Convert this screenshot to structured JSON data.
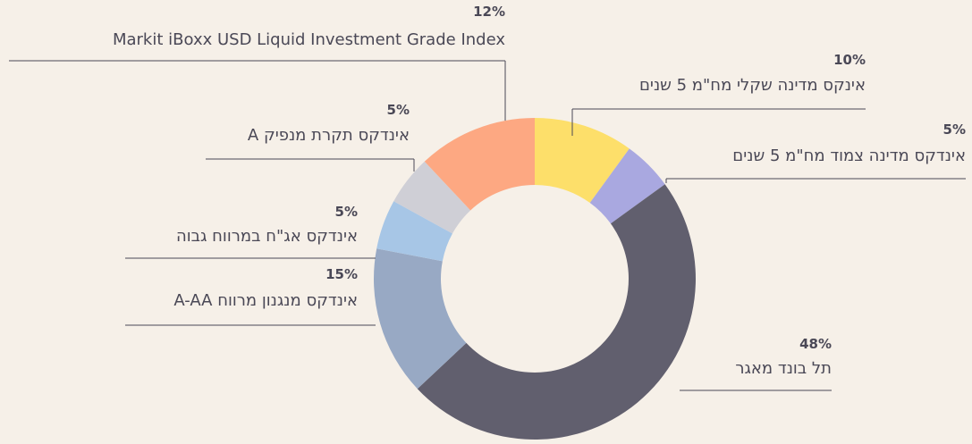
{
  "chart_data": {
    "type": "pie",
    "categories": [
      "אינקס מדינה שקלי מח\"מ 5 שנים",
      "אינדקס מדינה צמוד מח\"מ 5 שנים",
      "תל בונד מאגר",
      "אינדקס מנגנון מרווח A-AA",
      "אינדקס אג\"ח במרווח גבוה",
      "אינדקס תקרת מנפיק A",
      "Markit iBoxx USD Liquid Investment Grade Index"
    ],
    "values": [
      10,
      5,
      48,
      15,
      5,
      5,
      12
    ],
    "value_labels": [
      "10%",
      "5%",
      "48%",
      "15%",
      "5%",
      "5%",
      "12%"
    ],
    "colors": [
      "#fddf6a",
      "#a9a8e0",
      "#615f6e",
      "#98a9c4",
      "#a7c6e6",
      "#cfcfd6",
      "#fda882"
    ]
  }
}
